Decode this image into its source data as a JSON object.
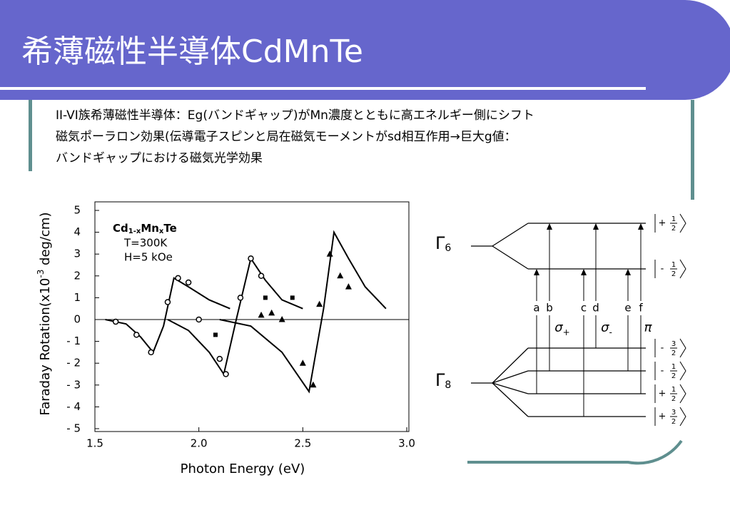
{
  "slide": {
    "title": "希薄磁性半導体CdMnTe",
    "bullets": [
      "II-VI族希薄磁性半導体：Eg(バンドギャップ)がMn濃度とともに高エネルギー側にシフト",
      "磁気ポーラロン効果(伝導電子スピンと局在磁気モーメントがsd相互作用→巨大g値：",
      "バンドギャップにおける磁気光学効果"
    ]
  },
  "chart_data": {
    "type": "line",
    "x_label": "Photon Energy (eV)",
    "y_label": {
      "text": "Faraday Rotation(x10",
      "sup": "-3",
      "unit": " deg/cm)"
    },
    "annotation": {
      "formula": [
        "Cd",
        "1-x",
        "Mn",
        "x",
        "Te"
      ],
      "lines": [
        "T=300K",
        "H=5 kOe"
      ]
    },
    "xlim": [
      1.5,
      3.0
    ],
    "ylim": [
      -5,
      5
    ],
    "xticks": [
      1.5,
      {
        "value": 2,
        "label": "2.0"
      },
      2.5,
      {
        "value": 3,
        "label": "3.0"
      }
    ],
    "yticks": [
      {
        "value": -5,
        "label": "- 5"
      },
      {
        "value": -4,
        "label": "- 4"
      },
      {
        "value": -3,
        "label": "- 3"
      },
      {
        "value": -2,
        "label": "- 2"
      },
      {
        "value": -1,
        "label": "- 1"
      },
      0,
      1,
      2,
      3,
      4,
      5
    ],
    "zero_line": true,
    "series": [
      {
        "style": "line",
        "color": "#000000",
        "x": [
          1.55,
          1.65,
          1.72,
          1.78,
          1.83,
          1.88,
          1.95,
          2.05,
          2.15
        ],
        "values": [
          0,
          -0.2,
          -0.8,
          -1.5,
          -0.3,
          1.9,
          1.5,
          0.9,
          0.5
        ]
      },
      {
        "style": "line",
        "color": "#000000",
        "x": [
          1.85,
          1.95,
          2.05,
          2.12,
          2.18,
          2.25,
          2.32,
          2.4,
          2.5
        ],
        "values": [
          0,
          -0.5,
          -1.5,
          -2.5,
          0,
          2.8,
          1.8,
          0.9,
          0.5
        ]
      },
      {
        "style": "line",
        "color": "#000000",
        "x": [
          2.1,
          2.25,
          2.4,
          2.53,
          2.6,
          2.65,
          2.72,
          2.8,
          2.9
        ],
        "values": [
          0,
          -0.3,
          -1.5,
          -3.3,
          0.5,
          4.0,
          2.8,
          1.5,
          0.5
        ]
      },
      {
        "style": "circle",
        "color": "#000000",
        "x": [
          1.6,
          1.7,
          1.77,
          1.85,
          1.9,
          1.95,
          2.0,
          2.1,
          2.13,
          2.2,
          2.25,
          2.3
        ],
        "values": [
          -0.1,
          -0.7,
          -1.5,
          0.8,
          1.9,
          1.7,
          0,
          -1.8,
          -2.5,
          1,
          2.8,
          2
        ]
      },
      {
        "style": "triangle",
        "color": "#000000",
        "x": [
          2.3,
          2.35,
          2.4,
          2.5,
          2.55,
          2.58,
          2.63,
          2.68,
          2.72
        ],
        "values": [
          0.2,
          0.3,
          0,
          -2,
          -3,
          0.7,
          3,
          2,
          1.5
        ]
      },
      {
        "style": "square",
        "color": "#000000",
        "x": [
          2.08,
          2.32,
          2.45
        ],
        "values": [
          -0.7,
          1,
          1
        ]
      }
    ]
  },
  "diagram": {
    "gamma6": {
      "symbol": "Γ",
      "sub": "6"
    },
    "gamma8": {
      "symbol": "Γ",
      "sub": "8"
    },
    "upper_levels": [
      {
        "sign": "+",
        "num": "1",
        "den": "2"
      },
      {
        "sign": "-",
        "num": "1",
        "den": "2"
      }
    ],
    "lower_levels": [
      {
        "sign": "-",
        "num": "3",
        "den": "2"
      },
      {
        "sign": "-",
        "num": "1",
        "den": "2"
      },
      {
        "sign": "+",
        "num": "1",
        "den": "2"
      },
      {
        "sign": "+",
        "num": "3",
        "den": "2"
      }
    ],
    "transitions": [
      "a",
      "b",
      "c",
      "d",
      "e",
      "f"
    ],
    "polarizations": [
      {
        "symbol": "σ",
        "sub": "+"
      },
      {
        "symbol": "σ",
        "sub": "-"
      },
      {
        "symbol": "π"
      }
    ]
  }
}
